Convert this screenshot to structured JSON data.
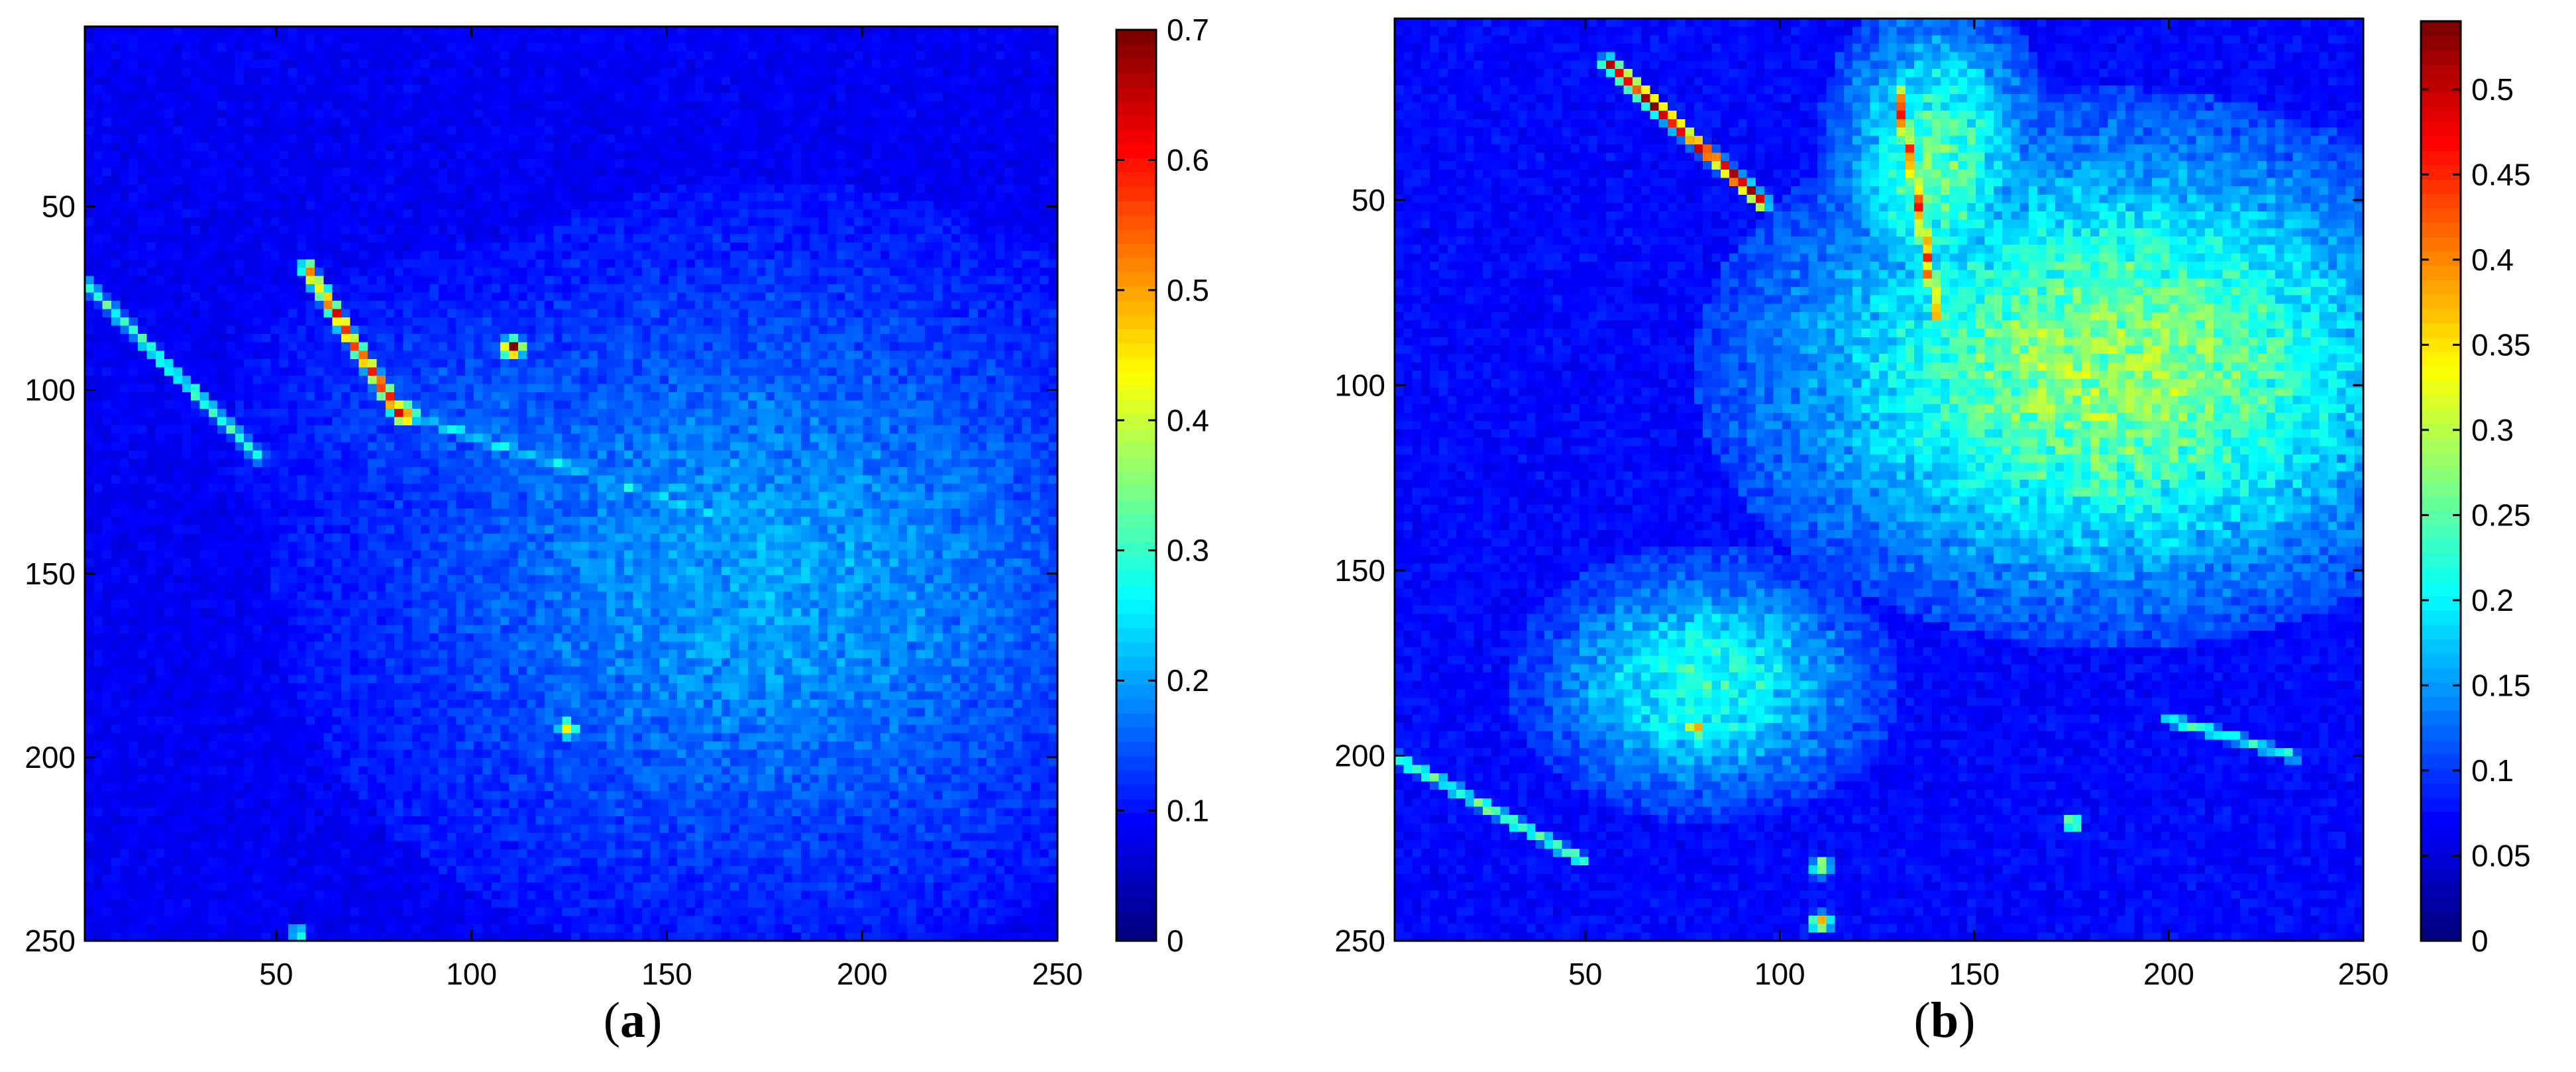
{
  "chart_data": [
    {
      "type": "heatmap",
      "caption": "(a)",
      "caption_letter": "a",
      "grid_size": [
        250,
        250
      ],
      "x_ticks": [
        50,
        100,
        150,
        200,
        250
      ],
      "y_ticks": [
        50,
        100,
        150,
        200,
        250
      ],
      "xlim": [
        1,
        250
      ],
      "ylim": [
        1,
        250
      ],
      "y_reversed": true,
      "colormap": "jet",
      "colorbar": {
        "ticks": [
          "0",
          "0.1",
          "0.2",
          "0.3",
          "0.4",
          "0.5",
          "0.6",
          "0.7"
        ],
        "tick_values": [
          0,
          0.1,
          0.2,
          0.3,
          0.4,
          0.5,
          0.6,
          0.7
        ],
        "range": [
          0,
          0.7
        ]
      },
      "background_level": 0.08,
      "textured_regions": [
        {
          "center": [
            175,
            150
          ],
          "radius": [
            100,
            85
          ],
          "level": 0.2
        },
        {
          "center": [
            110,
            110
          ],
          "radius": [
            60,
            40
          ],
          "level": 0.15
        }
      ],
      "features": [
        {
          "kind": "streak",
          "from": [
            0,
            70
          ],
          "to": [
            45,
            118
          ],
          "level": 0.3
        },
        {
          "kind": "streak",
          "from": [
            57,
            66
          ],
          "to": [
            82,
            108
          ],
          "level": 0.55
        },
        {
          "kind": "hotspot",
          "at": [
            110,
            88
          ],
          "level": 0.68
        },
        {
          "kind": "hotspot",
          "at": [
            83,
            106
          ],
          "level": 0.6
        },
        {
          "kind": "hotspot",
          "at": [
            124,
            192
          ],
          "level": 0.45
        },
        {
          "kind": "hotspot",
          "at": [
            55,
            248
          ],
          "level": 0.3
        },
        {
          "kind": "streak",
          "from": [
            88,
            108
          ],
          "to": [
            160,
            133
          ],
          "level": 0.25
        }
      ]
    },
    {
      "type": "heatmap",
      "caption": "(b)",
      "caption_letter": "b",
      "grid_size": [
        250,
        250
      ],
      "x_ticks": [
        50,
        100,
        150,
        200,
        250
      ],
      "y_ticks": [
        50,
        100,
        150,
        200,
        250
      ],
      "xlim": [
        1,
        250
      ],
      "ylim": [
        1,
        250
      ],
      "y_reversed": true,
      "colormap": "jet",
      "colorbar": {
        "ticks": [
          "0",
          "0.05",
          "0.1",
          "0.15",
          "0.2",
          "0.25",
          "0.3",
          "0.35",
          "0.4",
          "0.45",
          "0.5"
        ],
        "tick_values": [
          0,
          0.05,
          0.1,
          0.15,
          0.2,
          0.25,
          0.3,
          0.35,
          0.4,
          0.45,
          0.5
        ],
        "range": [
          0,
          0.54
        ]
      },
      "background_level": 0.07,
      "textured_regions": [
        {
          "center": [
            185,
            95
          ],
          "radius": [
            85,
            60
          ],
          "level": 0.28
        },
        {
          "center": [
            80,
            180
          ],
          "radius": [
            40,
            30
          ],
          "level": 0.22
        },
        {
          "center": [
            140,
            40
          ],
          "radius": [
            25,
            40
          ],
          "level": 0.25
        }
      ],
      "features": [
        {
          "kind": "streak",
          "from": [
            55,
            12
          ],
          "to": [
            95,
            50
          ],
          "level": 0.48
        },
        {
          "kind": "streak",
          "from": [
            0,
            200
          ],
          "to": [
            48,
            228
          ],
          "level": 0.25
        },
        {
          "kind": "streak",
          "from": [
            130,
            20
          ],
          "to": [
            140,
            80
          ],
          "level": 0.4
        },
        {
          "kind": "hotspot",
          "at": [
            110,
            245
          ],
          "level": 0.4
        },
        {
          "kind": "hotspot",
          "at": [
            110,
            230
          ],
          "level": 0.35
        },
        {
          "kind": "hotspot",
          "at": [
            78,
            192
          ],
          "level": 0.42
        },
        {
          "kind": "hotspot",
          "at": [
            175,
            218
          ],
          "level": 0.32
        },
        {
          "kind": "streak",
          "from": [
            200,
            190
          ],
          "to": [
            232,
            200
          ],
          "level": 0.22
        }
      ]
    }
  ]
}
